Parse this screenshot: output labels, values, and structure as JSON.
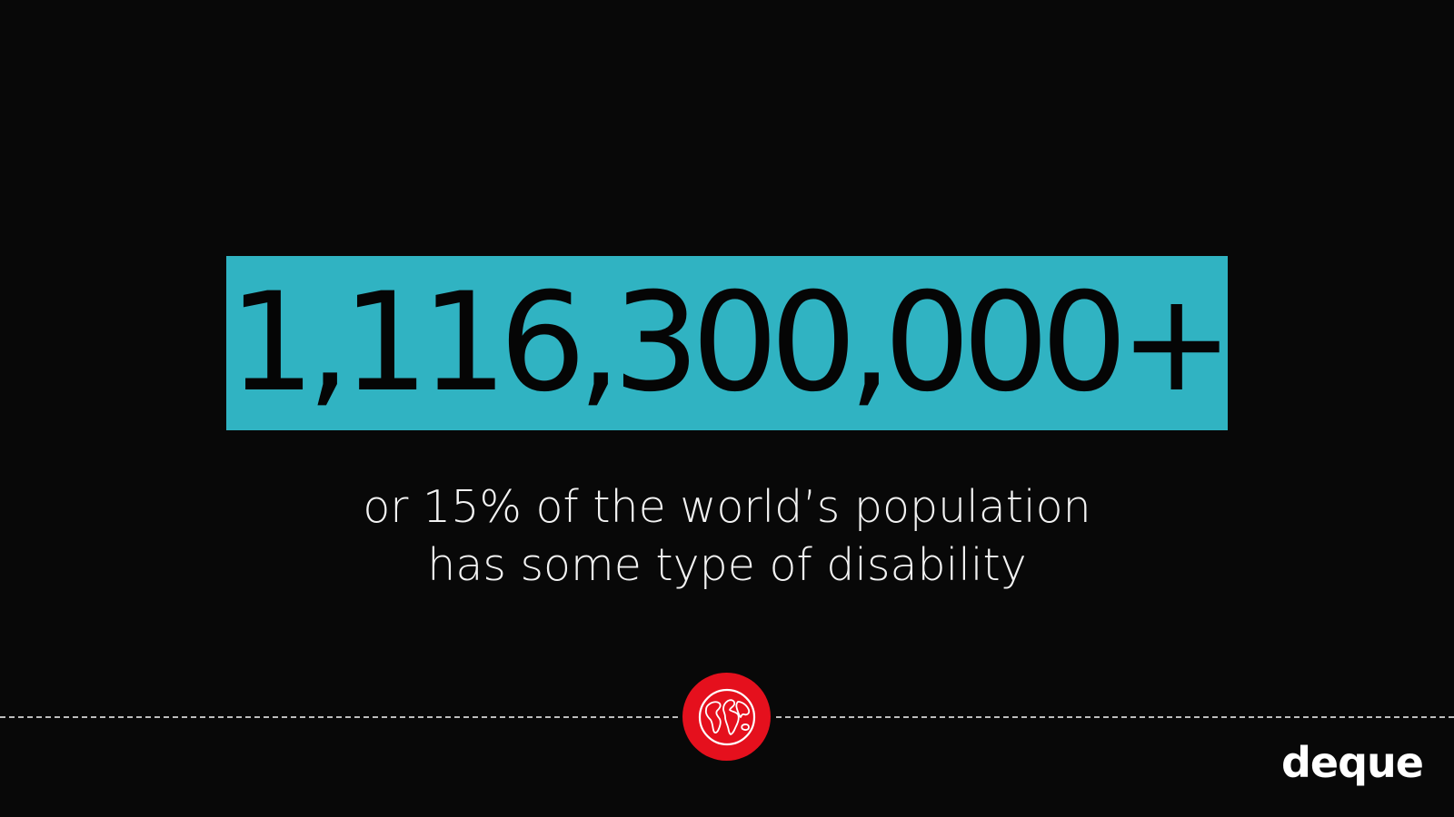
{
  "slide": {
    "stat": "1,116,300,000+",
    "caption_line1": "or 15% of the world’s population",
    "caption_line2": "has some type of disability",
    "icon": "globe-icon",
    "brand": "deque",
    "colors": {
      "background": "#080808",
      "highlight": "#30b3c2",
      "badge": "#e5101d",
      "text": "#f2f2f2"
    }
  }
}
